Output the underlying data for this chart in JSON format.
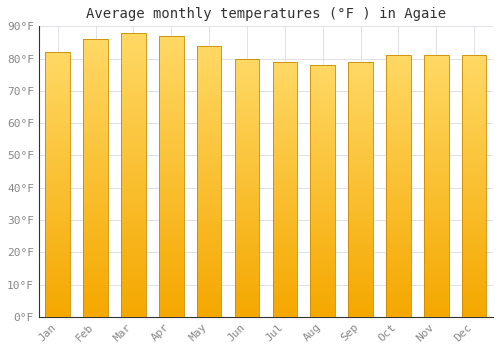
{
  "months": [
    "Jan",
    "Feb",
    "Mar",
    "Apr",
    "May",
    "Jun",
    "Jul",
    "Aug",
    "Sep",
    "Oct",
    "Nov",
    "Dec"
  ],
  "values": [
    82,
    86,
    88,
    87,
    84,
    80,
    79,
    78,
    79,
    81,
    81,
    81
  ],
  "bar_color_bottom": "#F5A800",
  "bar_color_top": "#FFD966",
  "bar_edge_color": "#C88A00",
  "title": "Average monthly temperatures (°F ) in Agaie",
  "ylim": [
    0,
    90
  ],
  "ytick_step": 10,
  "background_color": "#ffffff",
  "plot_bg_color": "#ffffff",
  "grid_color": "#e0e0e8",
  "title_fontsize": 10,
  "tick_fontsize": 8,
  "font_family": "monospace"
}
